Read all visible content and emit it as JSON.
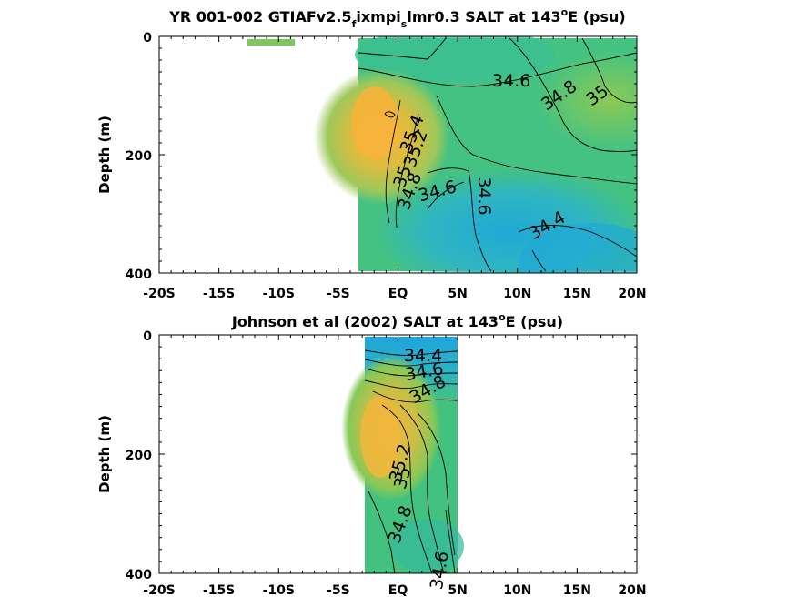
{
  "chart_data": [
    {
      "type": "heatmap",
      "title": {
        "prefix": "YR 001-002 GTIAFv2.5",
        "sub1": "f",
        "mid": "ixmpi",
        "sub2": "s",
        "suffix_before_sup": "lmr0.3 SALT at 143",
        "sup": "o",
        "suffix": "E (psu)"
      },
      "ylabel": "Depth (m)",
      "xlim": [
        -20,
        20
      ],
      "ylim": [
        0,
        400
      ],
      "y_reversed": true,
      "x_ticks": [
        -20,
        -15,
        -10,
        -5,
        0,
        5,
        10,
        15,
        20
      ],
      "x_tick_labels": [
        "-20S",
        "-15S",
        "-10S",
        "-5S",
        "EQ",
        "5N",
        "10N",
        "15N",
        "20N"
      ],
      "y_ticks": [
        0,
        200,
        400
      ],
      "y_tick_labels": [
        "0",
        "200",
        "400"
      ],
      "contour_labels": [
        {
          "text": "34.6",
          "x": 9.5,
          "y": 75,
          "angle": 0
        },
        {
          "text": "34.8",
          "x": 13.5,
          "y": 100,
          "angle": -35
        },
        {
          "text": "35",
          "x": 16.7,
          "y": 100,
          "angle": -35
        },
        {
          "text": "35.4",
          "x": 1.2,
          "y": 165,
          "angle": -70
        },
        {
          "text": "35.2",
          "x": 1.5,
          "y": 190,
          "angle": -70
        },
        {
          "text": "35",
          "x": 0.4,
          "y": 237,
          "angle": -70
        },
        {
          "text": "34.8",
          "x": 1.0,
          "y": 262,
          "angle": -70
        },
        {
          "text": "34.6",
          "x": 3.3,
          "y": 262,
          "angle": -15
        },
        {
          "text": "34.6",
          "x": 7.2,
          "y": 270,
          "angle": 90
        },
        {
          "text": "34.4",
          "x": 12.5,
          "y": 320,
          "angle": -30
        }
      ]
    },
    {
      "type": "heatmap",
      "title": {
        "prefix": "Johnson et al (2002) SALT at 143",
        "sup": "o",
        "suffix": "E (psu)"
      },
      "ylabel": "Depth (m)",
      "xlim": [
        -20,
        20
      ],
      "ylim": [
        0,
        400
      ],
      "y_reversed": true,
      "x_ticks": [
        -20,
        -15,
        -10,
        -5,
        0,
        5,
        10,
        15,
        20
      ],
      "x_tick_labels": [
        "-20S",
        "-15S",
        "-10S",
        "-5S",
        "EQ",
        "5N",
        "10N",
        "15N",
        "20N"
      ],
      "y_ticks": [
        0,
        200,
        400
      ],
      "y_tick_labels": [
        "0",
        "200",
        "400"
      ],
      "contour_labels": [
        {
          "text": "34.4",
          "x": 2.1,
          "y": 35,
          "angle": 0
        },
        {
          "text": "34.6",
          "x": 2.2,
          "y": 62,
          "angle": -10
        },
        {
          "text": "34.8",
          "x": 2.5,
          "y": 92,
          "angle": -30
        },
        {
          "text": "35.2",
          "x": 0.2,
          "y": 215,
          "angle": -75
        },
        {
          "text": "35",
          "x": 0.4,
          "y": 240,
          "angle": -75
        },
        {
          "text": "34.8",
          "x": 0.2,
          "y": 318,
          "angle": -70
        },
        {
          "text": "34.6",
          "x": 3.5,
          "y": 395,
          "angle": -80
        }
      ]
    }
  ]
}
